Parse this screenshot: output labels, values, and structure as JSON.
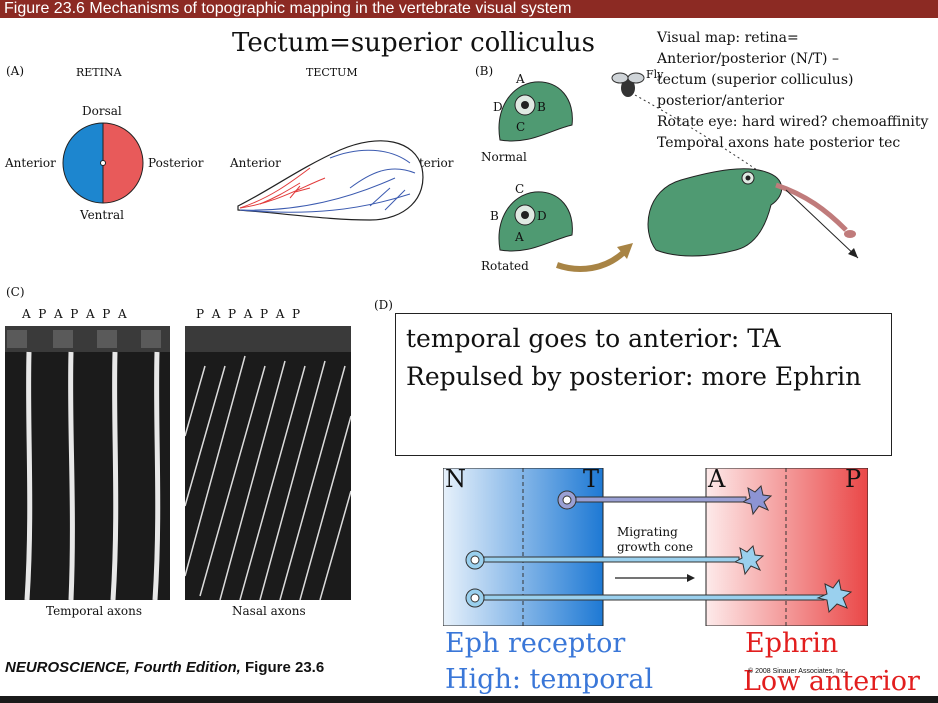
{
  "header": {
    "title": "Figure 23.6  Mechanisms of topographic mapping in the vertebrate visual system"
  },
  "main_title": "Tectum=superior colliculus",
  "notes": [
    "Visual map: retina=",
    "Anterior/posterior (N/T) –",
    "tectum (superior colliculus)",
    "posterior/anterior",
    "Rotate eye: hard wired? chemoaffinity",
    "Temporal axons hate posterior tec"
  ],
  "panel_a": {
    "label": "(A)",
    "retina_title": "RETINA",
    "tectum_title": "TECTUM",
    "dorsal": "Dorsal",
    "ventral": "Ventral",
    "anterior": "Anterior",
    "posterior": "Posterior",
    "tectum_anterior": "Anterior",
    "tectum_posterior": "Posterior"
  },
  "panel_b": {
    "label": "(B)",
    "fly": "Fly",
    "normal": "Normal",
    "rotated": "Rotated",
    "normal_letters": {
      "a": "A",
      "b": "B",
      "c": "C",
      "d": "D"
    },
    "rotated_letters": {
      "a": "A",
      "b": "B",
      "c": "C",
      "d": "D"
    }
  },
  "panel_c": {
    "label": "(C)",
    "left_stripes": "A  P  A  P  A  P  A",
    "right_stripes": "P  A  P  A  P  A  P",
    "temporal": "Temporal axons",
    "nasal": "Nasal axons"
  },
  "panel_d": {
    "label": "(D)",
    "box_line1": "temporal goes to anterior: TA",
    "box_line2": "Repulsed by posterior: more Ephrin",
    "n": "N",
    "t": "T",
    "a": "A",
    "p": "P",
    "migrating": "Migrating",
    "growth_cone": "growth cone",
    "eph_receptor": "Eph receptor",
    "high_temporal": "High: temporal",
    "ephrin": "Ephrin",
    "low_anterior": "Low anterior",
    "copyright": "© 2008 Sinauer Associates, Inc."
  },
  "footer": {
    "book": "NEUROSCIENCE, Fourth Edition,",
    "figure": " Figure 23.6"
  },
  "colors": {
    "bar": "#8c2a23",
    "blue": "#3a77d8",
    "red": "#e21e1e"
  }
}
